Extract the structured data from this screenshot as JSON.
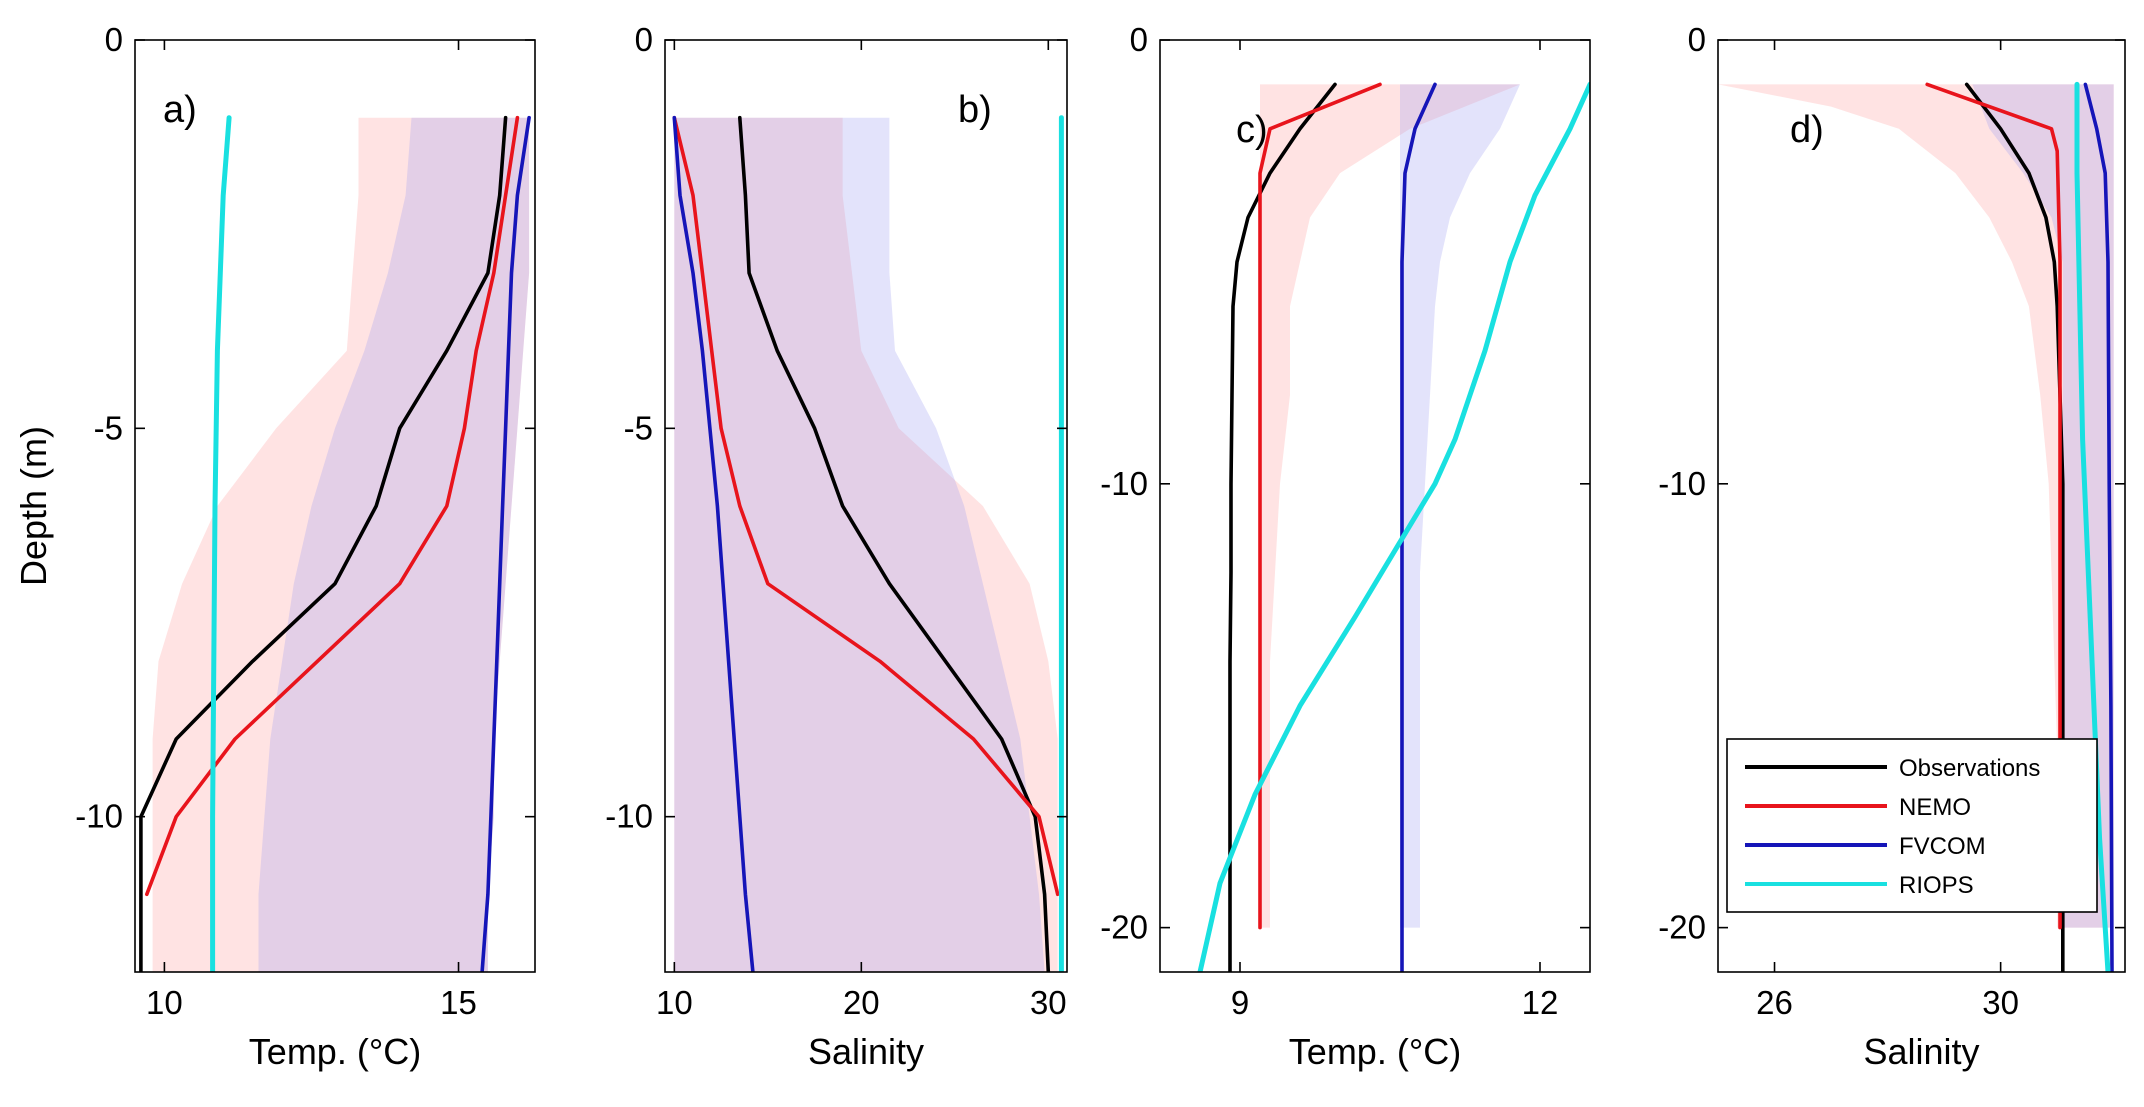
{
  "legend": {
    "placement": "bottom-right of panel d",
    "entries": [
      {
        "label": "Observations",
        "color": "#000000"
      },
      {
        "label": "NEMO",
        "color": "#e8141c"
      },
      {
        "label": "FVCOM",
        "color": "#1515b8"
      },
      {
        "label": "RIOPS",
        "color": "#19e0e0"
      }
    ]
  },
  "colors": {
    "Observations": "#000000",
    "NEMO": "#e8141c",
    "FVCOM": "#1515b8",
    "RIOPS": "#19e0e0",
    "NEMO_band": "#ff9999",
    "FVCOM_band": "#9999f0"
  },
  "chart_data": [
    {
      "type": "line",
      "panel_label": "a)",
      "xlabel": "Temp. (°C)",
      "ylabel": "Depth (m)",
      "xlim": [
        9.5,
        16.3
      ],
      "ylim": [
        -12,
        0
      ],
      "xticks": [
        10,
        15
      ],
      "yticks": [
        0,
        -5,
        -10
      ],
      "ytick_labels": [
        "0",
        "-5",
        "-10"
      ],
      "grid": false,
      "bands": [
        {
          "series": "NEMO",
          "color": "#ff9999",
          "depth": [
            -1,
            -2,
            -3,
            -4,
            -5,
            -6,
            -7,
            -8,
            -9,
            -10,
            -11,
            -12
          ],
          "lower": [
            13.3,
            13.3,
            13.2,
            13.1,
            11.9,
            10.9,
            10.3,
            9.9,
            9.8,
            9.8,
            9.8,
            9.8
          ],
          "upper": [
            16.2,
            16.2,
            16.2,
            16.1,
            16.0,
            15.9,
            15.8,
            15.7,
            15.6,
            15.6,
            15.5,
            15.5
          ]
        },
        {
          "series": "FVCOM",
          "color": "#9999f0",
          "depth": [
            -1,
            -2,
            -3,
            -4,
            -5,
            -6,
            -7,
            -8,
            -9,
            -10,
            -11,
            -12
          ],
          "lower": [
            14.2,
            14.1,
            13.8,
            13.4,
            12.9,
            12.5,
            12.2,
            12.0,
            11.8,
            11.7,
            11.6,
            11.6
          ],
          "upper": [
            16.2,
            16.2,
            16.2,
            16.1,
            16.0,
            15.9,
            15.8,
            15.7,
            15.6,
            15.6,
            15.5,
            15.5
          ]
        }
      ],
      "series": [
        {
          "name": "Observations",
          "color": "#000000",
          "x": [
            15.8,
            15.7,
            15.5,
            14.8,
            14.0,
            13.6,
            12.9,
            11.5,
            10.2,
            9.6,
            9.6,
            9.6
          ],
          "y": [
            -1,
            -2,
            -3,
            -4,
            -5,
            -6,
            -7,
            -8,
            -9,
            -10,
            -11,
            -12
          ]
        },
        {
          "name": "NEMO",
          "color": "#e8141c",
          "x": [
            16.0,
            15.8,
            15.6,
            15.3,
            15.1,
            14.8,
            14.0,
            12.6,
            11.2,
            10.2,
            9.7
          ],
          "y": [
            -1,
            -2,
            -3,
            -4,
            -5,
            -6,
            -7,
            -8,
            -9,
            -10,
            -11
          ]
        },
        {
          "name": "FVCOM",
          "color": "#1515b8",
          "x": [
            16.2,
            16.0,
            15.9,
            15.85,
            15.8,
            15.75,
            15.7,
            15.65,
            15.6,
            15.55,
            15.5,
            15.4
          ],
          "y": [
            -1,
            -2,
            -3,
            -4,
            -5,
            -6,
            -7,
            -8,
            -9,
            -10,
            -11,
            -12
          ]
        },
        {
          "name": "RIOPS",
          "color": "#19e0e0",
          "x": [
            11.1,
            11.0,
            10.95,
            10.9,
            10.88,
            10.86,
            10.85,
            10.84,
            10.83,
            10.82,
            10.82,
            10.82
          ],
          "y": [
            -1,
            -2,
            -3,
            -4,
            -5,
            -6,
            -7,
            -8,
            -9,
            -10,
            -11,
            -12
          ]
        }
      ]
    },
    {
      "type": "line",
      "panel_label": "b)",
      "xlabel": "Salinity",
      "xlim": [
        9.5,
        31
      ],
      "ylim": [
        -12,
        0
      ],
      "xticks": [
        10,
        20,
        30
      ],
      "yticks": [
        0,
        -5,
        -10
      ],
      "ytick_labels": [
        "0",
        "-5",
        "-10"
      ],
      "grid": false,
      "bands": [
        {
          "series": "NEMO",
          "color": "#ff9999",
          "depth": [
            -1,
            -2,
            -3,
            -4,
            -5,
            -6,
            -7,
            -8,
            -9,
            -10,
            -11,
            -12
          ],
          "lower": [
            10.0,
            10.0,
            10.0,
            10.0,
            10.0,
            10.0,
            10.0,
            10.0,
            10.0,
            10.0,
            10.0,
            10.0
          ],
          "upper": [
            19.0,
            19.0,
            19.5,
            20.0,
            22.0,
            26.5,
            29.0,
            30.0,
            30.5,
            30.5,
            30.5,
            30.5
          ]
        },
        {
          "series": "FVCOM",
          "color": "#9999f0",
          "depth": [
            -1,
            -2,
            -3,
            -4,
            -5,
            -6,
            -7,
            -8,
            -9,
            -10,
            -11,
            -12
          ],
          "lower": [
            10.0,
            10.0,
            10.0,
            10.0,
            10.0,
            10.0,
            10.0,
            10.0,
            10.0,
            10.0,
            10.0,
            10.0
          ],
          "upper": [
            21.5,
            21.5,
            21.5,
            21.8,
            24.0,
            25.5,
            26.5,
            27.5,
            28.5,
            29.0,
            29.5,
            29.8
          ]
        }
      ],
      "series": [
        {
          "name": "Observations",
          "color": "#000000",
          "x": [
            13.5,
            13.8,
            14.0,
            15.5,
            17.5,
            19.0,
            21.5,
            24.5,
            27.5,
            29.3,
            29.8,
            30.0
          ],
          "y": [
            -1,
            -2,
            -3,
            -4,
            -5,
            -6,
            -7,
            -8,
            -9,
            -10,
            -11,
            -12
          ]
        },
        {
          "name": "NEMO",
          "color": "#e8141c",
          "x": [
            10.0,
            11.0,
            11.5,
            12.0,
            12.5,
            13.5,
            15.0,
            21.0,
            26.0,
            29.5,
            30.5
          ],
          "y": [
            -1,
            -2,
            -3,
            -4,
            -5,
            -6,
            -7,
            -8,
            -9,
            -10,
            -11
          ]
        },
        {
          "name": "FVCOM",
          "color": "#1515b8",
          "x": [
            10.0,
            10.3,
            11.0,
            11.5,
            11.9,
            12.3,
            12.6,
            12.9,
            13.2,
            13.5,
            13.8,
            14.2
          ],
          "y": [
            -1,
            -2,
            -3,
            -4,
            -5,
            -6,
            -7,
            -8,
            -9,
            -10,
            -11,
            -12
          ]
        },
        {
          "name": "RIOPS",
          "color": "#19e0e0",
          "x": [
            30.7,
            30.7,
            30.7,
            30.7,
            30.7,
            30.7,
            30.7,
            30.7,
            30.7,
            30.7,
            30.7,
            30.7
          ],
          "y": [
            -1,
            -2,
            -3,
            -4,
            -5,
            -6,
            -7,
            -8,
            -9,
            -10,
            -11,
            -12
          ]
        }
      ]
    },
    {
      "type": "line",
      "panel_label": "c)",
      "xlabel": "Temp. (°C)",
      "xlim": [
        8.2,
        12.5
      ],
      "ylim": [
        -21,
        0
      ],
      "xticks": [
        9,
        12
      ],
      "yticks": [
        0,
        -10,
        -20
      ],
      "ytick_labels": [
        "0",
        "-10",
        "-20"
      ],
      "grid": false,
      "bands": [
        {
          "series": "NEMO",
          "color": "#ff9999",
          "depth": [
            -1,
            -2,
            -3,
            -4,
            -5,
            -6,
            -8,
            -10,
            -12,
            -14,
            -16,
            -18,
            -20
          ],
          "lower": [
            9.2,
            9.2,
            9.2,
            9.2,
            9.2,
            9.2,
            9.2,
            9.2,
            9.2,
            9.2,
            9.2,
            9.2,
            9.2
          ],
          "upper": [
            11.8,
            10.7,
            10.0,
            9.7,
            9.6,
            9.5,
            9.5,
            9.4,
            9.35,
            9.3,
            9.3,
            9.3,
            9.3
          ]
        },
        {
          "series": "FVCOM",
          "color": "#9999f0",
          "depth": [
            -1,
            -2,
            -3,
            -4,
            -5,
            -6,
            -8,
            -10,
            -12,
            -14,
            -16,
            -18,
            -20
          ],
          "lower": [
            10.6,
            10.6,
            10.6,
            10.6,
            10.6,
            10.6,
            10.6,
            10.6,
            10.6,
            10.6,
            10.6,
            10.6,
            10.6
          ],
          "upper": [
            11.8,
            11.6,
            11.3,
            11.1,
            11.0,
            10.95,
            10.9,
            10.85,
            10.8,
            10.8,
            10.8,
            10.8,
            10.8
          ]
        }
      ],
      "series": [
        {
          "name": "Observations",
          "color": "#000000",
          "x": [
            9.95,
            9.6,
            9.3,
            9.08,
            8.97,
            8.93,
            8.92,
            8.91,
            8.91,
            8.9,
            8.9,
            8.9,
            8.9
          ],
          "y": [
            -1,
            -2,
            -3,
            -4,
            -5,
            -6,
            -8,
            -10,
            -12,
            -14,
            -16,
            -18,
            -21
          ]
        },
        {
          "name": "NEMO",
          "color": "#e8141c",
          "x": [
            10.4,
            9.3,
            9.2,
            9.2,
            9.2
          ],
          "y": [
            -1,
            -2,
            -3,
            -10,
            -20
          ]
        },
        {
          "name": "FVCOM",
          "color": "#1515b8",
          "x": [
            10.95,
            10.75,
            10.65,
            10.62,
            10.62,
            10.62
          ],
          "y": [
            -1,
            -2,
            -3,
            -5,
            -10,
            -21
          ]
        },
        {
          "name": "RIOPS",
          "color": "#19e0e0",
          "x": [
            12.5,
            12.3,
            11.95,
            11.7,
            11.45,
            11.3,
            11.15,
            10.95,
            10.55,
            10.15,
            9.6,
            9.15,
            8.8,
            8.6
          ],
          "y": [
            -1,
            -2,
            -3.5,
            -5,
            -7,
            -8,
            -9,
            -10,
            -11.5,
            -13,
            -15,
            -17,
            -19,
            -21
          ]
        }
      ]
    },
    {
      "type": "line",
      "panel_label": "d)",
      "xlabel": "Salinity",
      "xlim": [
        25,
        32.2
      ],
      "ylim": [
        -21,
        0
      ],
      "xticks": [
        26,
        30
      ],
      "yticks": [
        0,
        -10,
        -20
      ],
      "ytick_labels": [
        "0",
        "-10",
        "-20"
      ],
      "grid": false,
      "bands": [
        {
          "series": "NEMO",
          "color": "#ff9999",
          "depth": [
            -1,
            -1.5,
            -2,
            -3,
            -4,
            -5,
            -6,
            -8,
            -10,
            -12,
            -14,
            -16,
            -18,
            -20
          ],
          "lower": [
            25.0,
            27.0,
            28.2,
            29.2,
            29.8,
            30.2,
            30.5,
            30.7,
            30.85,
            30.9,
            30.95,
            31.0,
            31.0,
            31.0
          ],
          "upper": [
            32.0,
            32.0,
            32.0,
            32.0,
            32.0,
            32.0,
            32.0,
            32.0,
            32.0,
            32.0,
            32.0,
            32.0,
            32.0,
            32.0
          ]
        },
        {
          "series": "FVCOM",
          "color": "#9999f0",
          "depth": [
            -1,
            -2,
            -3,
            -4,
            -5,
            -6,
            -8,
            -10,
            -12,
            -14,
            -16,
            -18,
            -20
          ],
          "lower": [
            29.5,
            29.8,
            30.4,
            30.9,
            31.1,
            31.1,
            31.1,
            31.1,
            31.1,
            31.1,
            31.1,
            31.1,
            31.1
          ],
          "upper": [
            32.0,
            32.0,
            32.0,
            32.0,
            32.0,
            32.0,
            32.0,
            32.0,
            32.0,
            32.0,
            32.0,
            32.0,
            32.0
          ]
        }
      ],
      "series": [
        {
          "name": "Observations",
          "color": "#000000",
          "x": [
            29.4,
            30.0,
            30.5,
            30.8,
            30.95,
            31.0,
            31.05,
            31.1,
            31.1,
            31.1,
            31.1
          ],
          "y": [
            -1,
            -2,
            -3,
            -4,
            -5,
            -6,
            -8,
            -10,
            -14,
            -18,
            -21
          ]
        },
        {
          "name": "NEMO",
          "color": "#e8141c",
          "x": [
            28.7,
            30.9,
            31.0,
            31.05,
            31.05,
            31.05
          ],
          "y": [
            -1,
            -2,
            -2.5,
            -5,
            -10,
            -20
          ]
        },
        {
          "name": "FVCOM",
          "color": "#1515b8",
          "x": [
            31.5,
            31.7,
            31.85,
            31.9,
            31.92,
            31.95,
            31.97
          ],
          "y": [
            -1,
            -2,
            -3,
            -5,
            -10,
            -15,
            -21
          ]
        },
        {
          "name": "RIOPS",
          "color": "#19e0e0",
          "x": [
            31.35,
            31.35,
            31.4,
            31.45,
            31.55,
            31.65,
            31.75,
            31.9
          ],
          "y": [
            -1,
            -3,
            -6,
            -9,
            -12,
            -15,
            -18,
            -21
          ]
        }
      ]
    }
  ]
}
